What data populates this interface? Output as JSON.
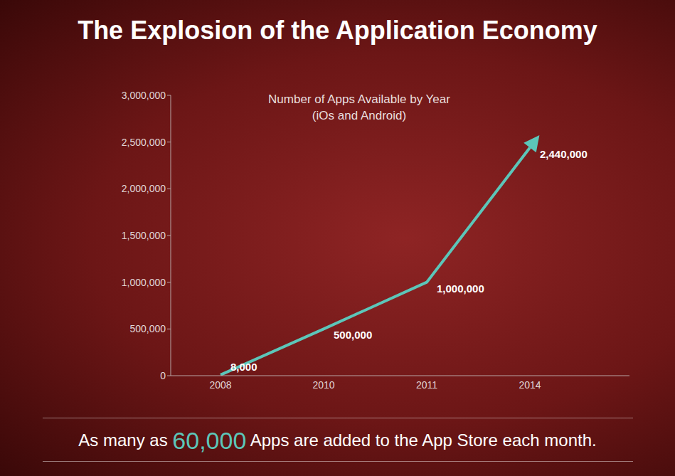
{
  "chart_data": {
    "type": "line",
    "title": "The Explosion of the Application Economy",
    "subtitle": [
      "Number of Apps Available by Year",
      "(iOs and Android)"
    ],
    "annotations": [
      "As many as ",
      "60,000",
      " Apps are added to the App Store each month."
    ],
    "categories": [
      "2008",
      "2010",
      "2011",
      "2014"
    ],
    "values": [
      8000,
      500000,
      1000000,
      2440000
    ],
    "value_labels": [
      "8,000",
      "500,000",
      "1,000,000",
      "2,440,000"
    ],
    "color": "#5cc6b9",
    "ylim": [
      0,
      3000000
    ],
    "yticks": [
      0,
      {
        "value": 500000,
        "label": "500,000"
      },
      {
        "value": 1000000,
        "label": "1,000,000"
      },
      {
        "value": 1500000,
        "label": "1,500,000"
      },
      {
        "value": 2000000,
        "label": "2,000,000"
      },
      {
        "value": 2500000,
        "label": "2,500,000"
      },
      {
        "value": 3000000,
        "label": "3,000,000"
      }
    ],
    "grid": false,
    "data_labels": true,
    "marker": "arrow",
    "line_style": "solid",
    "tick_labels": true
  }
}
